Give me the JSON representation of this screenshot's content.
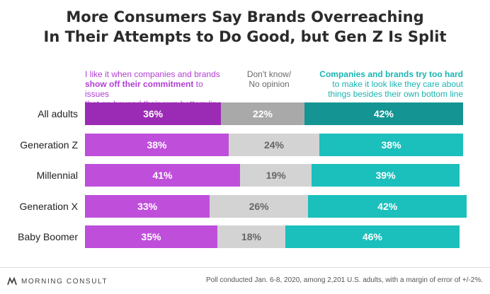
{
  "title_line1": "More Consumers Say Brands Overreaching",
  "title_line2": "In Their Attempts to Do Good, but Gen Z Is Split",
  "legend": {
    "left_line1": "I like it when companies and brands",
    "left_line2_bold": "show off their commitment",
    "left_line2_rest": " to issues",
    "left_line3": "that go beyond their own bottom line",
    "mid_line1": "Don't know/",
    "mid_line2": "No opinion",
    "right_line1_bold": "Companies and brands try too hard",
    "right_line2": "to make it look like they care about",
    "right_line3": "things besides their own bottom line"
  },
  "colors": {
    "like_primary": "#9b2bb4",
    "like": "#bf4fdb",
    "dontknow_primary": "#a9a9a9",
    "dontknow": "#d3d3d3",
    "toohard_primary": "#149593",
    "toohard": "#1bbfbc",
    "label_dark_text": "#ffffff",
    "label_grey_text": "#666666"
  },
  "chart_data": {
    "type": "bar",
    "orientation": "horizontal",
    "stacked": true,
    "title": "More Consumers Say Brands Overreaching In Their Attempts to Do Good, but Gen Z Is Split",
    "unit": "%",
    "xlim": [
      0,
      100
    ],
    "categories": [
      "All adults",
      "Generation Z",
      "Millennial",
      "Generation X",
      "Baby Boomer"
    ],
    "series": [
      {
        "name": "I like it when companies and brands show off their commitment to issues that go beyond their own bottom line",
        "values": [
          36,
          38,
          41,
          33,
          35
        ]
      },
      {
        "name": "Don't know/ No opinion",
        "values": [
          22,
          24,
          19,
          26,
          18
        ]
      },
      {
        "name": "Companies and brands try too hard to make it look like they care about things besides their own bottom line",
        "values": [
          42,
          38,
          39,
          42,
          46
        ]
      }
    ],
    "value_labels": [
      [
        "36%",
        "22%",
        "42%"
      ],
      [
        "38%",
        "24%",
        "38%"
      ],
      [
        "41%",
        "19%",
        "39%"
      ],
      [
        "33%",
        "26%",
        "42%"
      ],
      [
        "35%",
        "18%",
        "46%"
      ]
    ]
  },
  "footer": {
    "brand": "MORNING CONSULT",
    "note": "Poll conducted Jan. 6-8, 2020, among 2,201 U.S. adults, with a margin of error of +/-2%."
  }
}
